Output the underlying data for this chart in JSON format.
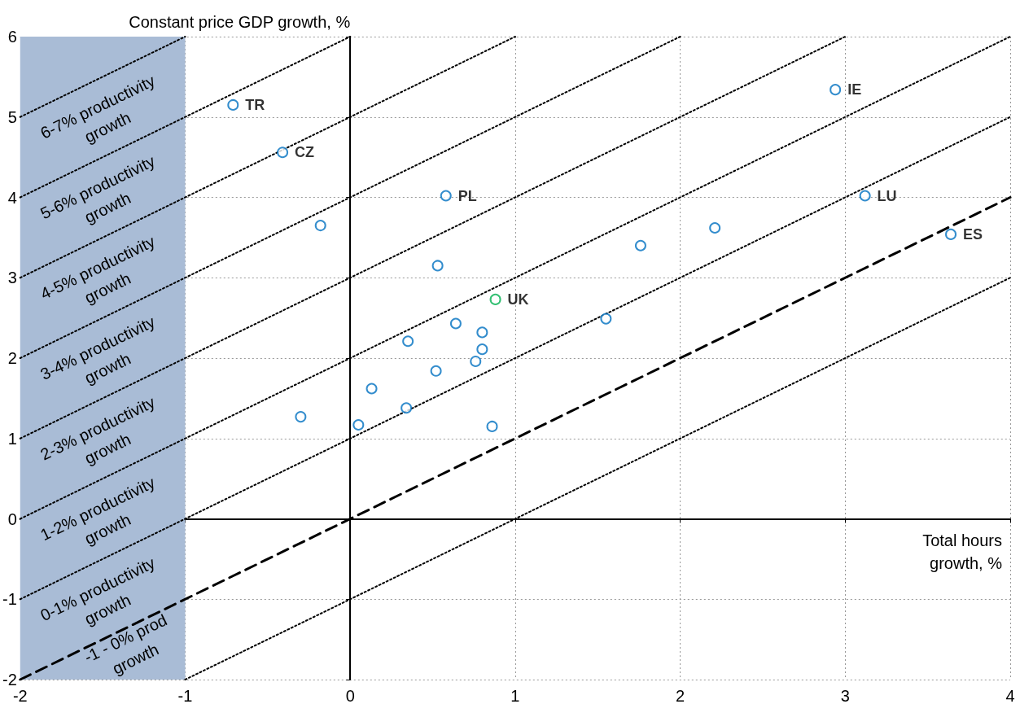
{
  "chart_data": {
    "type": "scatter",
    "xlabel": "Total hours growth, %",
    "ylabel": "Constant price GDP growth, %",
    "xlim": [
      -2,
      4
    ],
    "xticks": [
      -2,
      -1,
      0,
      1,
      2,
      3,
      4
    ],
    "ylim": [
      -2,
      6
    ],
    "yticks": [
      -2,
      -1,
      0,
      1,
      2,
      3,
      4,
      5,
      6
    ],
    "grid": true,
    "marker": "circle",
    "bands": [
      {
        "axis": "x",
        "from": -2,
        "to": -1,
        "color": "#a9bcd6"
      }
    ],
    "annotations": [
      "6-7% productivity\ngrowth",
      "5-6% productivity\ngrowth",
      "4-5% productivity\ngrowth",
      "3-4% productivity\ngrowth",
      "2-3% productivity\ngrowth",
      "1-2% productivity\ngrowth",
      "0-1% productivity\ngrowth",
      "-1 - 0% prod\ngrowth"
    ],
    "series": [
      {
        "type": "line",
        "marker": "none",
        "color": "#000000",
        "line_style": "dotted",
        "x": [
          -2,
          -1
        ],
        "values": [
          5,
          6
        ]
      },
      {
        "type": "line",
        "marker": "none",
        "color": "#000000",
        "line_style": "dotted",
        "x": [
          -2,
          0
        ],
        "values": [
          4,
          6
        ]
      },
      {
        "type": "line",
        "marker": "none",
        "color": "#000000",
        "line_style": "dotted",
        "x": [
          -2,
          1
        ],
        "values": [
          3,
          6
        ]
      },
      {
        "type": "line",
        "marker": "none",
        "color": "#000000",
        "line_style": "dotted",
        "x": [
          -2,
          2
        ],
        "values": [
          2,
          6
        ]
      },
      {
        "type": "line",
        "marker": "none",
        "color": "#000000",
        "line_style": "dotted",
        "x": [
          -2,
          3
        ],
        "values": [
          1,
          6
        ]
      },
      {
        "type": "line",
        "marker": "none",
        "color": "#000000",
        "line_style": "dotted",
        "x": [
          -2,
          4
        ],
        "values": [
          0,
          6
        ]
      },
      {
        "type": "line",
        "marker": "none",
        "color": "#000000",
        "line_style": "dotted",
        "x": [
          -2,
          4
        ],
        "values": [
          -1,
          5
        ]
      },
      {
        "type": "line",
        "marker": "none",
        "color": "#000000",
        "line_style": "dashed",
        "x": [
          -2,
          4
        ],
        "values": [
          -2,
          4
        ]
      },
      {
        "type": "line",
        "marker": "none",
        "color": "#000000",
        "line_style": "dotted",
        "x": [
          -1,
          4
        ],
        "values": [
          -2,
          3
        ]
      },
      {
        "color": "#0070c0",
        "x": [
          -0.71,
          2.94,
          -0.41,
          0.58,
          3.12,
          -0.18,
          2.21,
          1.76,
          3.64,
          0.53,
          0.64,
          0.8,
          0.35,
          0.8,
          0.76,
          0.52,
          1.55,
          0.13,
          0.34,
          -0.3,
          0.05,
          0.86
        ],
        "values": [
          5.15,
          5.34,
          4.56,
          4.02,
          4.02,
          3.65,
          3.62,
          3.4,
          3.54,
          3.15,
          2.43,
          2.32,
          2.21,
          2.11,
          1.96,
          1.84,
          2.49,
          1.62,
          1.38,
          1.27,
          1.17,
          1.15
        ],
        "value_labels": [
          "TR",
          "IE",
          "CZ",
          "PL",
          "LU",
          null,
          null,
          null,
          "ES",
          null,
          null,
          null,
          null,
          null,
          null,
          null,
          null,
          null,
          null,
          null,
          null,
          null
        ]
      },
      {
        "color": "#00b050",
        "x": [
          0.88
        ],
        "values": [
          2.73
        ],
        "value_labels": [
          "UK"
        ]
      }
    ]
  }
}
